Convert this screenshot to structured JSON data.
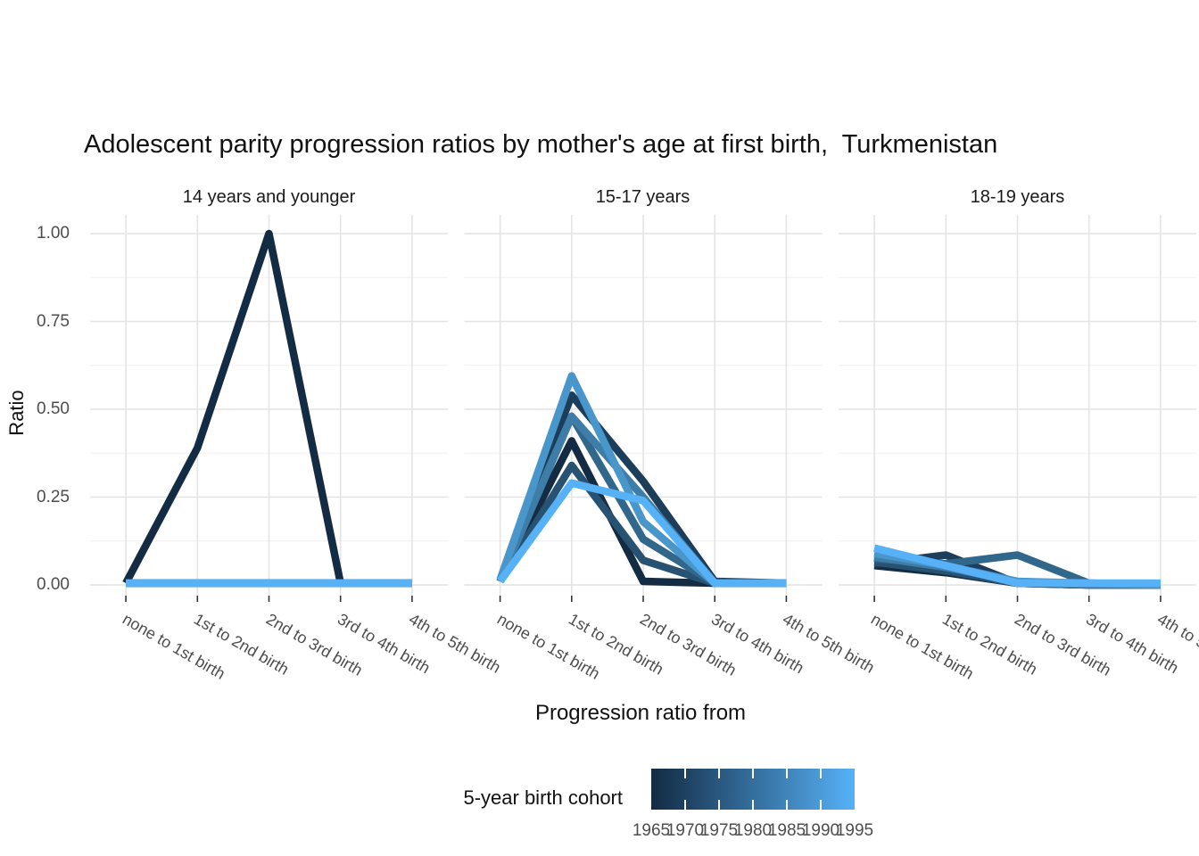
{
  "title": "Adolescent parity progression ratios by mother's age at first birth,  Turkmenistan",
  "y_axis": {
    "label": "Ratio",
    "tick_labels": [
      "1.00",
      "0.75",
      "0.50",
      "0.25",
      "0.00"
    ]
  },
  "x_axis": {
    "label": "Progression ratio from",
    "categories": [
      "none to 1st birth",
      "1st to 2nd birth",
      "2nd to 3rd birth",
      "3rd to 4th birth",
      "4th to 5th birth"
    ]
  },
  "legend": {
    "title": "5-year birth cohort",
    "tick_labels": [
      "1965",
      "1970",
      "1975",
      "1980",
      "1985",
      "1990",
      "1995"
    ],
    "gradient_start": "#132B43",
    "gradient_end": "#56B1F7"
  },
  "chart_data": {
    "type": "line",
    "categories": [
      "none to 1st birth",
      "1st to 2nd birth",
      "2nd to 3rd birth",
      "3rd to 4th birth",
      "4th to 5th birth"
    ],
    "title": "Adolescent parity progression ratios by mother's age at first birth,  Turkmenistan",
    "xlabel": "Progression ratio from",
    "ylabel": "Ratio",
    "ylim": [
      0,
      1
    ],
    "yticks": [
      0,
      0.25,
      0.5,
      0.75,
      1.0
    ],
    "grid": true,
    "legend_position": "bottom",
    "facets": [
      {
        "label": "14 years and younger",
        "series": [
          {
            "name": "1965",
            "color": "#132B43",
            "values": [
              0.005,
              0.39,
              1.0,
              0.005,
              0.005
            ]
          },
          {
            "name": "1970",
            "color": "#1D3E5B",
            "values": [
              0.005,
              0.005,
              0.005,
              0.005,
              0.005
            ]
          },
          {
            "name": "1975",
            "color": "#275272",
            "values": [
              0.005,
              0.005,
              0.005,
              0.005,
              0.005
            ]
          },
          {
            "name": "1980",
            "color": "#32678C",
            "values": [
              0.005,
              0.005,
              0.005,
              0.005,
              0.005
            ]
          },
          {
            "name": "1985",
            "color": "#3E7DA8",
            "values": [
              0.005,
              0.005,
              0.005,
              0.005,
              0.005
            ]
          },
          {
            "name": "1990",
            "color": "#4996CB",
            "values": [
              0.005,
              0.005,
              0.005,
              0.005,
              0.005
            ]
          },
          {
            "name": "1995",
            "color": "#56B1F7",
            "values": [
              0.005,
              0.005,
              0.005,
              0.005,
              0.005
            ]
          }
        ]
      },
      {
        "label": "15-17 years",
        "series": [
          {
            "name": "1965",
            "color": "#132B43",
            "values": [
              0.01,
              0.41,
              0.01,
              0.005,
              0.005
            ]
          },
          {
            "name": "1970",
            "color": "#1D3E5B",
            "values": [
              0.01,
              0.54,
              0.295,
              0.01,
              0.005
            ]
          },
          {
            "name": "1975",
            "color": "#275272",
            "values": [
              0.01,
              0.34,
              0.07,
              0.005,
              0.005
            ]
          },
          {
            "name": "1980",
            "color": "#32678C",
            "values": [
              0.01,
              0.48,
              0.13,
              0.005,
              0.005
            ]
          },
          {
            "name": "1985",
            "color": "#3E7DA8",
            "values": [
              0.015,
              0.48,
              0.25,
              0.005,
              0.005
            ]
          },
          {
            "name": "1990",
            "color": "#4996CB",
            "values": [
              0.015,
              0.595,
              0.18,
              0.005,
              0.005
            ]
          },
          {
            "name": "1995",
            "color": "#56B1F7",
            "values": [
              0.01,
              0.29,
              0.24,
              0.005,
              0.005
            ]
          }
        ]
      },
      {
        "label": "18-19 years",
        "series": [
          {
            "name": "1965",
            "color": "#132B43",
            "values": [
              0.055,
              0.035,
              0.005,
              0.0,
              0.0
            ]
          },
          {
            "name": "1970",
            "color": "#1D3E5B",
            "values": [
              0.06,
              0.085,
              0.005,
              0.0,
              0.0
            ]
          },
          {
            "name": "1975",
            "color": "#275272",
            "values": [
              0.065,
              0.04,
              0.005,
              0.0,
              0.0
            ]
          },
          {
            "name": "1980",
            "color": "#32678C",
            "values": [
              0.075,
              0.06,
              0.085,
              0.005,
              0.0
            ]
          },
          {
            "name": "1985",
            "color": "#3E7DA8",
            "values": [
              0.08,
              0.05,
              0.01,
              0.0,
              0.0
            ]
          },
          {
            "name": "1990",
            "color": "#4996CB",
            "values": [
              0.09,
              0.055,
              0.01,
              0.005,
              0.0
            ]
          },
          {
            "name": "1995",
            "color": "#56B1F7",
            "values": [
              0.105,
              0.055,
              0.005,
              0.005,
              0.005
            ]
          }
        ]
      }
    ]
  }
}
